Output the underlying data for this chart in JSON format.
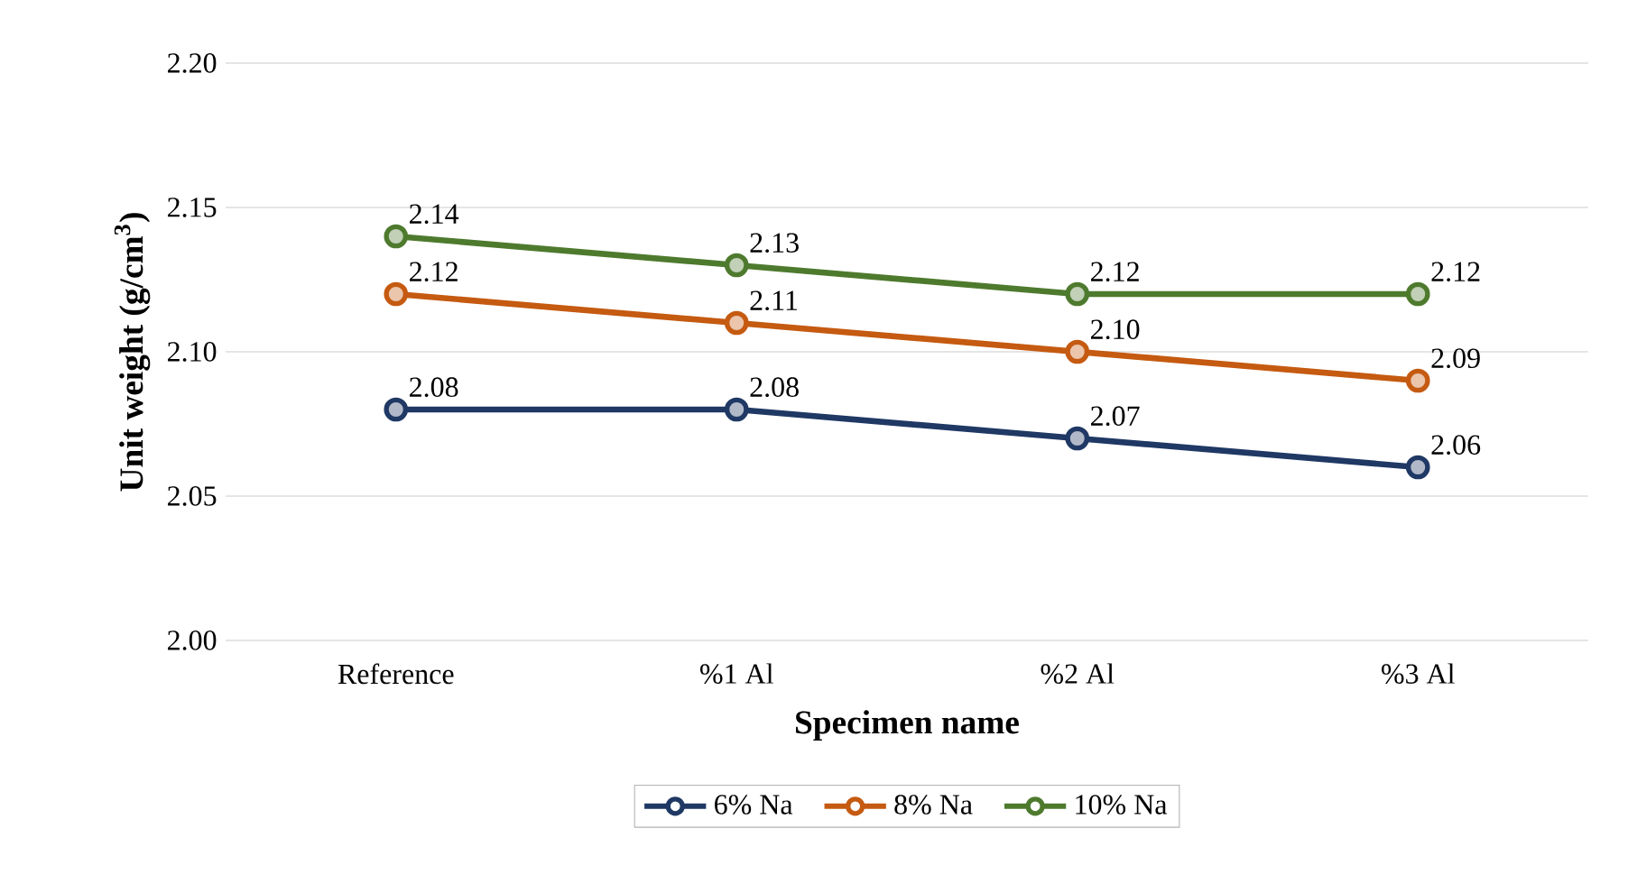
{
  "chart_data": {
    "type": "line",
    "xlabel": "Specimen name",
    "ylabel": "**Unit weight (g/cm$^{3}$)**",
    "categories": [
      "Reference",
      "%1 Al",
      "%2 Al",
      "%3 Al"
    ],
    "series": [
      {
        "name": "6% Na",
        "color": "#1f3864",
        "values": [
          2.08,
          2.08,
          2.07,
          2.06
        ],
        "value_labels": [
          "2.08",
          "2.08",
          "2.07",
          "2.06"
        ]
      },
      {
        "name": "8% Na",
        "color": "#c55a11",
        "values": [
          2.12,
          2.11,
          2.1,
          2.09
        ],
        "value_labels": [
          "2.12",
          "2.11",
          "2.10",
          "2.09"
        ]
      },
      {
        "name": "10% Na",
        "color": "#4e7a2e",
        "values": [
          2.14,
          2.13,
          2.12,
          2.12
        ],
        "value_labels": [
          "2.14",
          "2.13",
          "2.12",
          "2.12"
        ]
      }
    ],
    "ylim": [
      2.0,
      2.2
    ],
    "yticks": [
      {
        "value": 2.0,
        "label": "2.00"
      },
      {
        "value": 2.05,
        "label": "2.05"
      },
      {
        "value": 2.1,
        "label": "2.10"
      },
      {
        "value": 2.15,
        "label": "2.15"
      },
      {
        "value": 2.2,
        "label": "2.20"
      }
    ],
    "grid": "y",
    "legend": "bottom",
    "marker": "circle",
    "line_style": "solid"
  }
}
